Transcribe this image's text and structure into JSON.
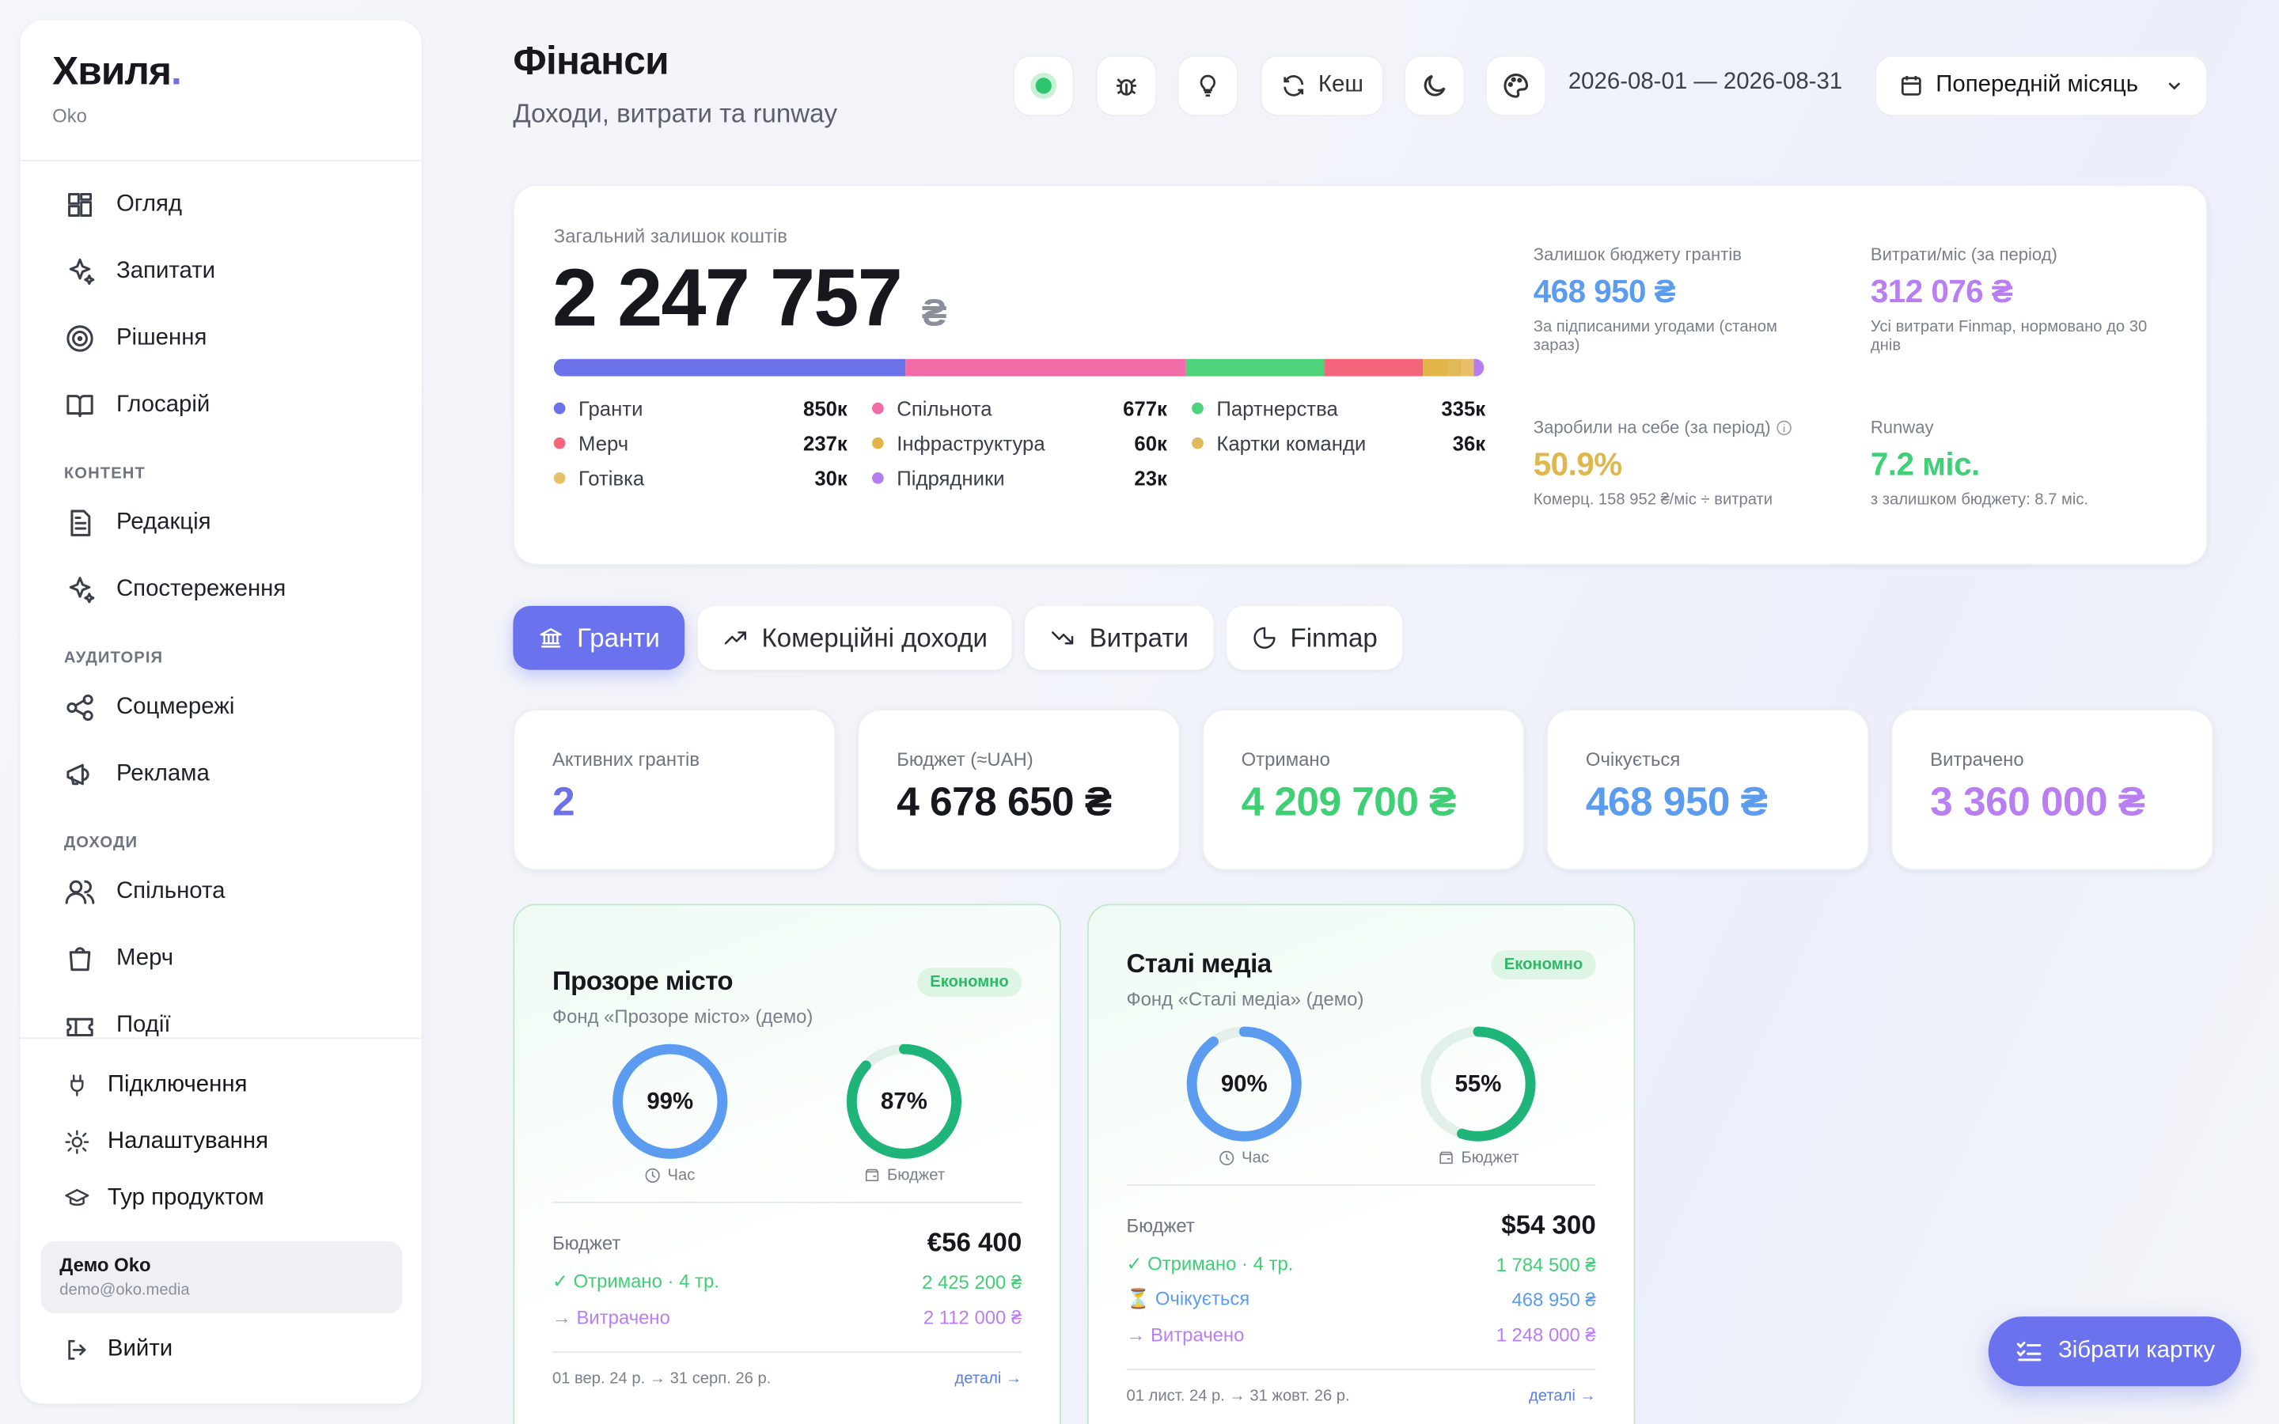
{
  "sidebar": {
    "brand": "Хвиля",
    "brand_dot": ".",
    "workspace": "Oko",
    "nav_main": [
      "Огляд",
      "Запитати",
      "Рішення",
      "Глосарій"
    ],
    "sections": [
      {
        "title": "КОНТЕНТ",
        "items": [
          "Редакція",
          "Спостереження"
        ]
      },
      {
        "title": "АУДИТОРІЯ",
        "items": [
          "Соцмережі",
          "Реклама"
        ]
      },
      {
        "title": "ДОХОДИ",
        "items": [
          "Спільнота",
          "Мерч",
          "Події"
        ]
      }
    ],
    "footer_nav": [
      "Підключення",
      "Налаштування",
      "Тур продуктом"
    ],
    "user": {
      "name": "Демо Oko",
      "email": "demo@oko.media"
    },
    "logout": "Вийти"
  },
  "header": {
    "title": "Фінанси",
    "subtitle": "Доходи, витрати та runway",
    "cache": "Кеш",
    "date_range": "2026-08-01 — 2026-08-31",
    "period": "Попередній місяць"
  },
  "balance": {
    "label": "Загальний залишок коштів",
    "amount": "2 247 757",
    "currency": "₴",
    "segments": [
      {
        "name": "Гранти",
        "value": 850,
        "label": "850к",
        "color": "#6b72e8"
      },
      {
        "name": "Спільнота",
        "value": 677,
        "label": "677к",
        "color": "#f06ba8"
      },
      {
        "name": "Партнерства",
        "value": 335,
        "label": "335к",
        "color": "#4fd37a"
      },
      {
        "name": "Мерч",
        "value": 237,
        "label": "237к",
        "color": "#f2657a"
      },
      {
        "name": "Інфраструктура",
        "value": 60,
        "label": "60к",
        "color": "#e2b54a"
      },
      {
        "name": "Картки команди",
        "value": 36,
        "label": "36к",
        "color": "#dfb95a"
      },
      {
        "name": "Готівка",
        "value": 30,
        "label": "30к",
        "color": "#e8c06a"
      },
      {
        "name": "Підрядники",
        "value": 23,
        "label": "23к",
        "color": "#b57ef0"
      }
    ]
  },
  "stats": [
    {
      "label": "Залишок бюджету грантів",
      "value": "468 950 ₴",
      "note": "За підписаними угодами (станом зараз)",
      "color": "#5b9cf0"
    },
    {
      "label": "Витрати/міс (за період)",
      "value": "312 076 ₴",
      "note": "Усі витрати Finmap, нормовано до 30 днів",
      "color": "#b97ff2"
    },
    {
      "label": "Заробили на себе (за період)",
      "value": "50.9%",
      "note": "Комерц. 158 952 ₴/міс ÷ витрати",
      "color": "#e0b64e"
    },
    {
      "label": "Runway",
      "value": "7.2 міс.",
      "note": "з залишком бюджету: 8.7 міс.",
      "color": "#3fcf74"
    }
  ],
  "tabs": {
    "items": [
      "Гранти",
      "Комерційні доходи",
      "Витрати",
      "Finmap"
    ],
    "active": 0
  },
  "kpis": [
    {
      "label": "Активних грантів",
      "value": "2",
      "color": "#6b72e8"
    },
    {
      "label": "Бюджет (≈UAH)",
      "value": "4 678 650 ₴",
      "color": "#16181d"
    },
    {
      "label": "Отримано",
      "value": "4 209 700 ₴",
      "color": "#3fcf74"
    },
    {
      "label": "Очікується",
      "value": "468 950 ₴",
      "color": "#5b9cf0"
    },
    {
      "label": "Витрачено",
      "value": "3 360 000 ₴",
      "color": "#b97ff2"
    }
  ],
  "grants": [
    {
      "title": "Прозоре місто",
      "badge": "Економно",
      "fund": "Фонд «Прозоре місто» (демо)",
      "rings": [
        {
          "value": 99,
          "label": "99%",
          "caption": "Час",
          "color": "#5b9cf0"
        },
        {
          "value": 87,
          "label": "87%",
          "caption": "Бюджет",
          "color": "#1fb57a"
        }
      ],
      "budget_label": "Бюджет",
      "budget": "€56 400",
      "rows": [
        {
          "label": "✓ Отримано · 4 тр.",
          "value": "2 425 200 ₴",
          "color": "#3fcf74"
        },
        {
          "label": "→ Витрачено",
          "value": "2 112 000 ₴",
          "color": "#b97ff2"
        }
      ],
      "period": "01 вер. 24 р. → 31 серп. 26 р.",
      "details": "деталі →"
    },
    {
      "title": "Сталі медіа",
      "badge": "Економно",
      "fund": "Фонд «Сталі медіа» (демо)",
      "rings": [
        {
          "value": 90,
          "label": "90%",
          "caption": "Час",
          "color": "#5b9cf0"
        },
        {
          "value": 55,
          "label": "55%",
          "caption": "Бюджет",
          "color": "#1fb57a"
        }
      ],
      "budget_label": "Бюджет",
      "budget": "$54 300",
      "rows": [
        {
          "label": "✓ Отримано · 4 тр.",
          "value": "1 784 500 ₴",
          "color": "#3fcf74"
        },
        {
          "label": "⏳ Очікується",
          "value": "468 950 ₴",
          "color": "#5b9cf0"
        },
        {
          "label": "→ Витрачено",
          "value": "1 248 000 ₴",
          "color": "#b97ff2"
        }
      ],
      "period": "01 лист. 24 р. → 31 жовт. 26 р.",
      "details": "деталі →"
    }
  ],
  "fab": "Зібрати картку"
}
